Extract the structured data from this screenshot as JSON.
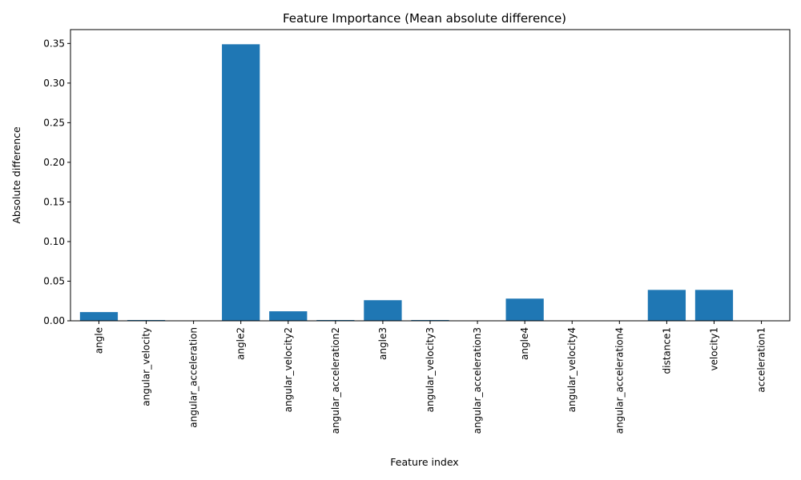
{
  "chart_data": {
    "type": "bar",
    "title": "Feature Importance (Mean absolute difference)",
    "xlabel": "Feature index",
    "ylabel": "Absolute difference",
    "categories": [
      "angle",
      "angular_velocity",
      "angular_acceleration",
      "angle2",
      "angular_velocity2",
      "angular_acceleration2",
      "angle3",
      "angular_velocity3",
      "angular_acceleration3",
      "angle4",
      "angular_velocity4",
      "angular_acceleration4",
      "distance1",
      "velocity1",
      "acceleration1"
    ],
    "values": [
      0.011,
      0.001,
      0.0,
      0.349,
      0.012,
      0.001,
      0.026,
      0.001,
      0.0,
      0.028,
      0.0,
      0.0,
      0.039,
      0.039,
      0.0
    ],
    "ylim": [
      0,
      0.3675
    ],
    "yticks": [
      "0.00",
      "0.05",
      "0.10",
      "0.15",
      "0.20",
      "0.25",
      "0.30",
      "0.35"
    ],
    "bar_color": "#1f77b4",
    "grid": false,
    "legend": "none"
  }
}
